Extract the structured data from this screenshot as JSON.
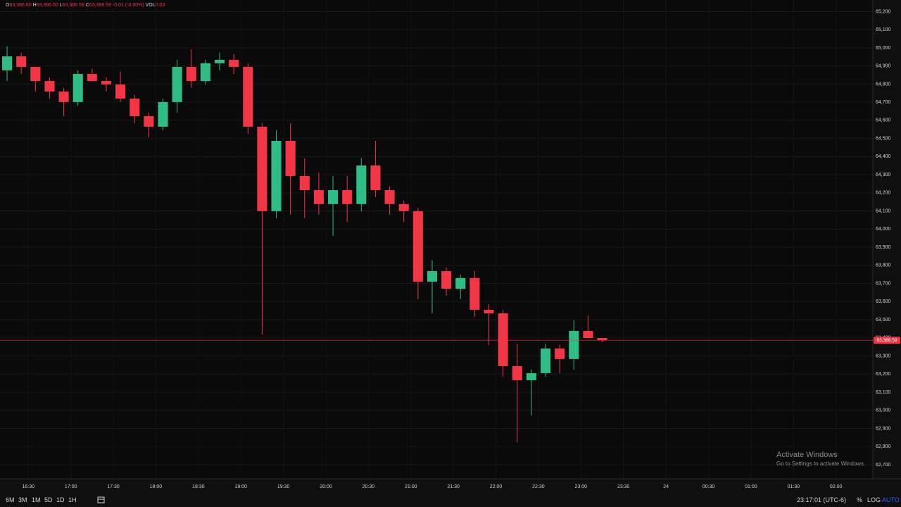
{
  "chart_data": {
    "type": "candlestick",
    "x": [
      "16:10",
      "16:20",
      "16:30",
      "16:40",
      "16:50",
      "17:00",
      "17:10",
      "17:20",
      "17:30",
      "17:40",
      "17:50",
      "18:00",
      "18:10",
      "18:20",
      "18:30",
      "18:40",
      "18:50",
      "19:00",
      "19:10",
      "19:20",
      "19:30",
      "19:40",
      "19:50",
      "20:00",
      "20:10",
      "20:20",
      "20:30",
      "20:40",
      "20:50",
      "21:00",
      "21:10",
      "21:20",
      "21:30",
      "21:40",
      "21:50",
      "22:00",
      "22:10",
      "22:20",
      "22:30",
      "22:40",
      "22:50",
      "23:00",
      "23:10"
    ],
    "open": [
      64876,
      64953,
      64895,
      64817,
      64759,
      64701,
      64856,
      64817,
      64798,
      64720,
      64623,
      64565,
      64701,
      64895,
      64817,
      64915,
      64934,
      64895,
      64565,
      64099,
      64487,
      64293,
      64215,
      64138,
      64215,
      64138,
      64351,
      64215,
      64138,
      64099,
      63710,
      63768,
      63671,
      63730,
      63555,
      63535,
      63244,
      63166,
      63205,
      63341,
      63283,
      63438,
      63399
    ],
    "high": [
      65008,
      64973,
      64895,
      64837,
      64779,
      64876,
      64883,
      64837,
      64868,
      64740,
      64643,
      64720,
      64934,
      64992,
      64934,
      64973,
      64965,
      64915,
      64584,
      64545,
      64584,
      64390,
      64312,
      64293,
      64293,
      64390,
      64487,
      64235,
      64157,
      64118,
      63827,
      63788,
      63749,
      63768,
      63586,
      63555,
      63368,
      63225,
      63368,
      63361,
      63497,
      63524,
      63399
    ],
    "low": [
      64817,
      64856,
      64759,
      64720,
      64623,
      64681,
      64817,
      64759,
      64701,
      64584,
      64507,
      64545,
      64643,
      64779,
      64798,
      64876,
      64856,
      64526,
      63419,
      64060,
      64079,
      64060,
      64079,
      63963,
      64040,
      64099,
      64176,
      64079,
      64040,
      63613,
      63535,
      63632,
      63613,
      63516,
      63361,
      63186,
      62824,
      62972,
      63186,
      63205,
      63225,
      63399,
      63376
    ],
    "close": [
      64953,
      64895,
      64817,
      64759,
      64701,
      64856,
      64817,
      64798,
      64720,
      64623,
      64565,
      64701,
      64895,
      64817,
      64915,
      64934,
      64895,
      64565,
      64099,
      64487,
      64293,
      64215,
      64138,
      64215,
      64138,
      64351,
      64215,
      64138,
      64099,
      63710,
      63768,
      63671,
      63730,
      63555,
      63535,
      63244,
      63166,
      63205,
      63341,
      63283,
      63438,
      63399,
      63386.59
    ],
    "up_color": "#2ebd85",
    "down_color": "#f23645",
    "xlim": [
      "16:10",
      "02:26"
    ],
    "xticks": [
      "16:30",
      "17:00",
      "17:30",
      "18:00",
      "18:30",
      "19:00",
      "19:30",
      "20:00",
      "20:30",
      "21:00",
      "21:30",
      "22:00",
      "22:30",
      "23:00",
      "23:30",
      {
        "value": "00:00",
        "label": "24"
      },
      "00:30",
      "01:00",
      "01:30",
      "02:00"
    ],
    "ylim": [
      62622,
      65264
    ],
    "yticks": [
      {
        "value": 62700,
        "label": "62,700"
      },
      {
        "value": 62800,
        "label": "62,800"
      },
      {
        "value": 62900,
        "label": "62,900"
      },
      {
        "value": 63000,
        "label": "63,000"
      },
      {
        "value": 63100,
        "label": "63,100"
      },
      {
        "value": 63200,
        "label": "63,200"
      },
      {
        "value": 63300,
        "label": "63,300"
      },
      {
        "value": 63400,
        "label": "63,400"
      },
      {
        "value": 63500,
        "label": "63,500"
      },
      {
        "value": 63600,
        "label": "63,600"
      },
      {
        "value": 63700,
        "label": "63,700"
      },
      {
        "value": 63800,
        "label": "63,800"
      },
      {
        "value": 63900,
        "label": "63,900"
      },
      {
        "value": 64000,
        "label": "64,000"
      },
      {
        "value": 64100,
        "label": "64,100"
      },
      {
        "value": 64200,
        "label": "64,200"
      },
      {
        "value": 64300,
        "label": "64,300"
      },
      {
        "value": 64400,
        "label": "64,400"
      },
      {
        "value": 64500,
        "label": "64,500"
      },
      {
        "value": 64600,
        "label": "64,600"
      },
      {
        "value": 64700,
        "label": "64,700"
      },
      {
        "value": 64800,
        "label": "64,800"
      },
      {
        "value": 64900,
        "label": "64,900"
      },
      {
        "value": 65000,
        "label": "65,000"
      },
      {
        "value": 65100,
        "label": "65,100"
      },
      {
        "value": 65200,
        "label": "65,200"
      }
    ],
    "grid": true,
    "last_price": {
      "value": 63386.59,
      "label": "63,386.59"
    },
    "readout": [
      {
        "key": "O",
        "value": "63,386.60"
      },
      {
        "key": "H",
        "value": "63,386.60"
      },
      {
        "key": "L",
        "value": "63,386.59"
      },
      {
        "key": "C",
        "value": "63,386.59"
      }
    ],
    "change": "-0.01 (-0.00%)",
    "volume_key": "VOL",
    "volume": "0.03"
  },
  "toolbar": {
    "ranges": [
      "6M",
      "3M",
      "1M",
      "5D",
      "1D",
      "1H"
    ],
    "clock": "23:17:01 (UTC-6)",
    "percent": "%",
    "log": "LOG",
    "auto": "AUTO"
  },
  "watermark": {
    "title": "Activate Windows",
    "subtitle": "Go to Settings to activate Windows."
  }
}
